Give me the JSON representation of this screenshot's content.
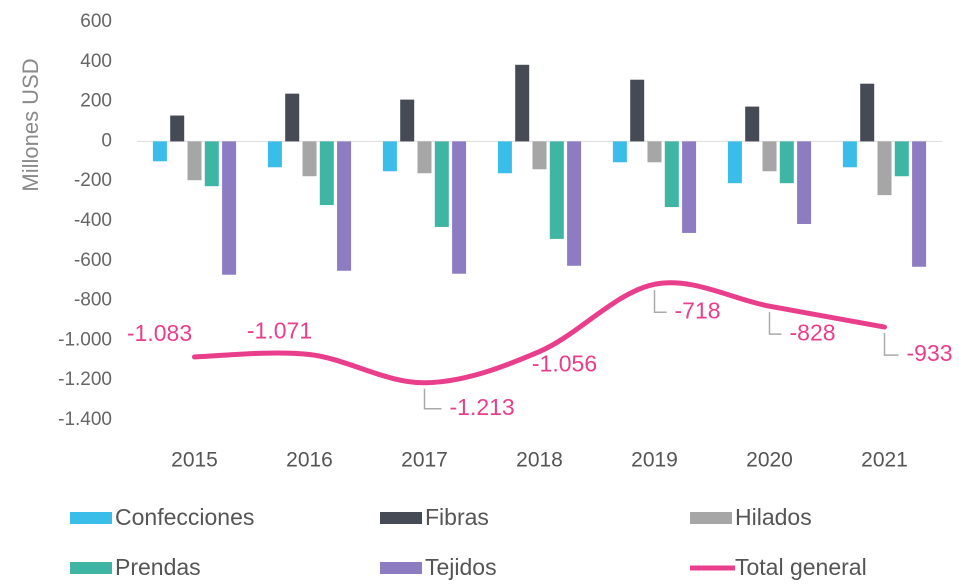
{
  "chart_data": {
    "type": "bar",
    "y_axis_label": "Millones USD",
    "categories": [
      "2015",
      "2016",
      "2017",
      "2018",
      "2019",
      "2020",
      "2021"
    ],
    "series": [
      {
        "name": "Confecciones",
        "color": "#3bbde9",
        "values": [
          -100,
          -130,
          -150,
          -160,
          -105,
          -210,
          -130
        ]
      },
      {
        "name": "Fibras",
        "color": "#454a54",
        "values": [
          130,
          240,
          210,
          385,
          310,
          175,
          290
        ]
      },
      {
        "name": "Hilados",
        "color": "#a6a6a6",
        "values": [
          -195,
          -175,
          -160,
          -140,
          -105,
          -150,
          -270
        ]
      },
      {
        "name": "Prendas",
        "color": "#3fb5a3",
        "values": [
          -225,
          -320,
          -430,
          -490,
          -330,
          -210,
          -175
        ]
      },
      {
        "name": "Tejidos",
        "color": "#8e7cc3",
        "values": [
          -670,
          -650,
          -665,
          -625,
          -460,
          -415,
          -630
        ]
      },
      {
        "name": "Total general",
        "type": "line",
        "color": "#e83e8c",
        "values": [
          -1083,
          -1071,
          -1213,
          -1056,
          -718,
          -828,
          -933
        ],
        "value_labels": [
          "-1.083",
          "-1.071",
          "-1.213",
          "-1.056",
          "-718",
          "-828",
          "-933"
        ]
      }
    ],
    "ylim": [
      -1400,
      600
    ],
    "yticks": [
      600,
      400,
      200,
      0,
      -200,
      -400,
      -600,
      -800,
      {
        "value": -1000,
        "label": "-1.000"
      },
      {
        "value": -1200,
        "label": "-1.200"
      },
      {
        "value": -1400,
        "label": "-1.400"
      }
    ],
    "grid": false,
    "legend": "bottom"
  }
}
